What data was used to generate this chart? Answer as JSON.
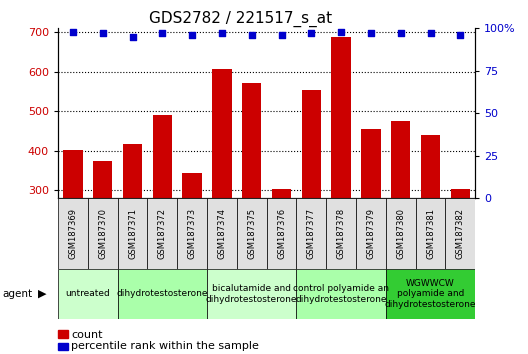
{
  "title": "GDS2782 / 221517_s_at",
  "samples": [
    "GSM187369",
    "GSM187370",
    "GSM187371",
    "GSM187372",
    "GSM187373",
    "GSM187374",
    "GSM187375",
    "GSM187376",
    "GSM187377",
    "GSM187378",
    "GSM187379",
    "GSM187380",
    "GSM187381",
    "GSM187382"
  ],
  "counts": [
    401,
    374,
    418,
    491,
    344,
    607,
    572,
    303,
    554,
    687,
    456,
    476,
    440,
    303
  ],
  "percentile": [
    98,
    97,
    95,
    97,
    96,
    97,
    96,
    96,
    97,
    98,
    97,
    97,
    97,
    96
  ],
  "bar_color": "#cc0000",
  "dot_color": "#0000cc",
  "ylim_left": [
    280,
    710
  ],
  "ylim_right": [
    0,
    100
  ],
  "yticks_left": [
    300,
    400,
    500,
    600,
    700
  ],
  "yticks_right": [
    0,
    25,
    50,
    75,
    100
  ],
  "agent_groups": [
    {
      "label": "untreated",
      "start": 0,
      "end": 1,
      "color": "#ccffcc"
    },
    {
      "label": "dihydrotestosterone",
      "start": 2,
      "end": 4,
      "color": "#aaffaa"
    },
    {
      "label": "bicalutamide and\ndihydrotestosterone",
      "start": 5,
      "end": 7,
      "color": "#ccffcc"
    },
    {
      "label": "control polyamide an\ndihydrotestosterone",
      "start": 8,
      "end": 10,
      "color": "#aaffaa"
    },
    {
      "label": "WGWWCW\npolyamide and\ndihydrotestosterone",
      "start": 11,
      "end": 13,
      "color": "#33cc33"
    }
  ],
  "agent_label": "agent",
  "legend_count_label": "count",
  "legend_percentile_label": "percentile rank within the sample",
  "bar_color_legend": "#cc0000",
  "dot_color_legend": "#0000cc",
  "cell_color": "#e0e0e0",
  "tick_color_left": "#cc0000",
  "tick_color_right": "#0000cc",
  "title_fontsize": 11,
  "axis_fontsize": 8,
  "sample_fontsize": 6,
  "agent_fontsize": 6.5
}
